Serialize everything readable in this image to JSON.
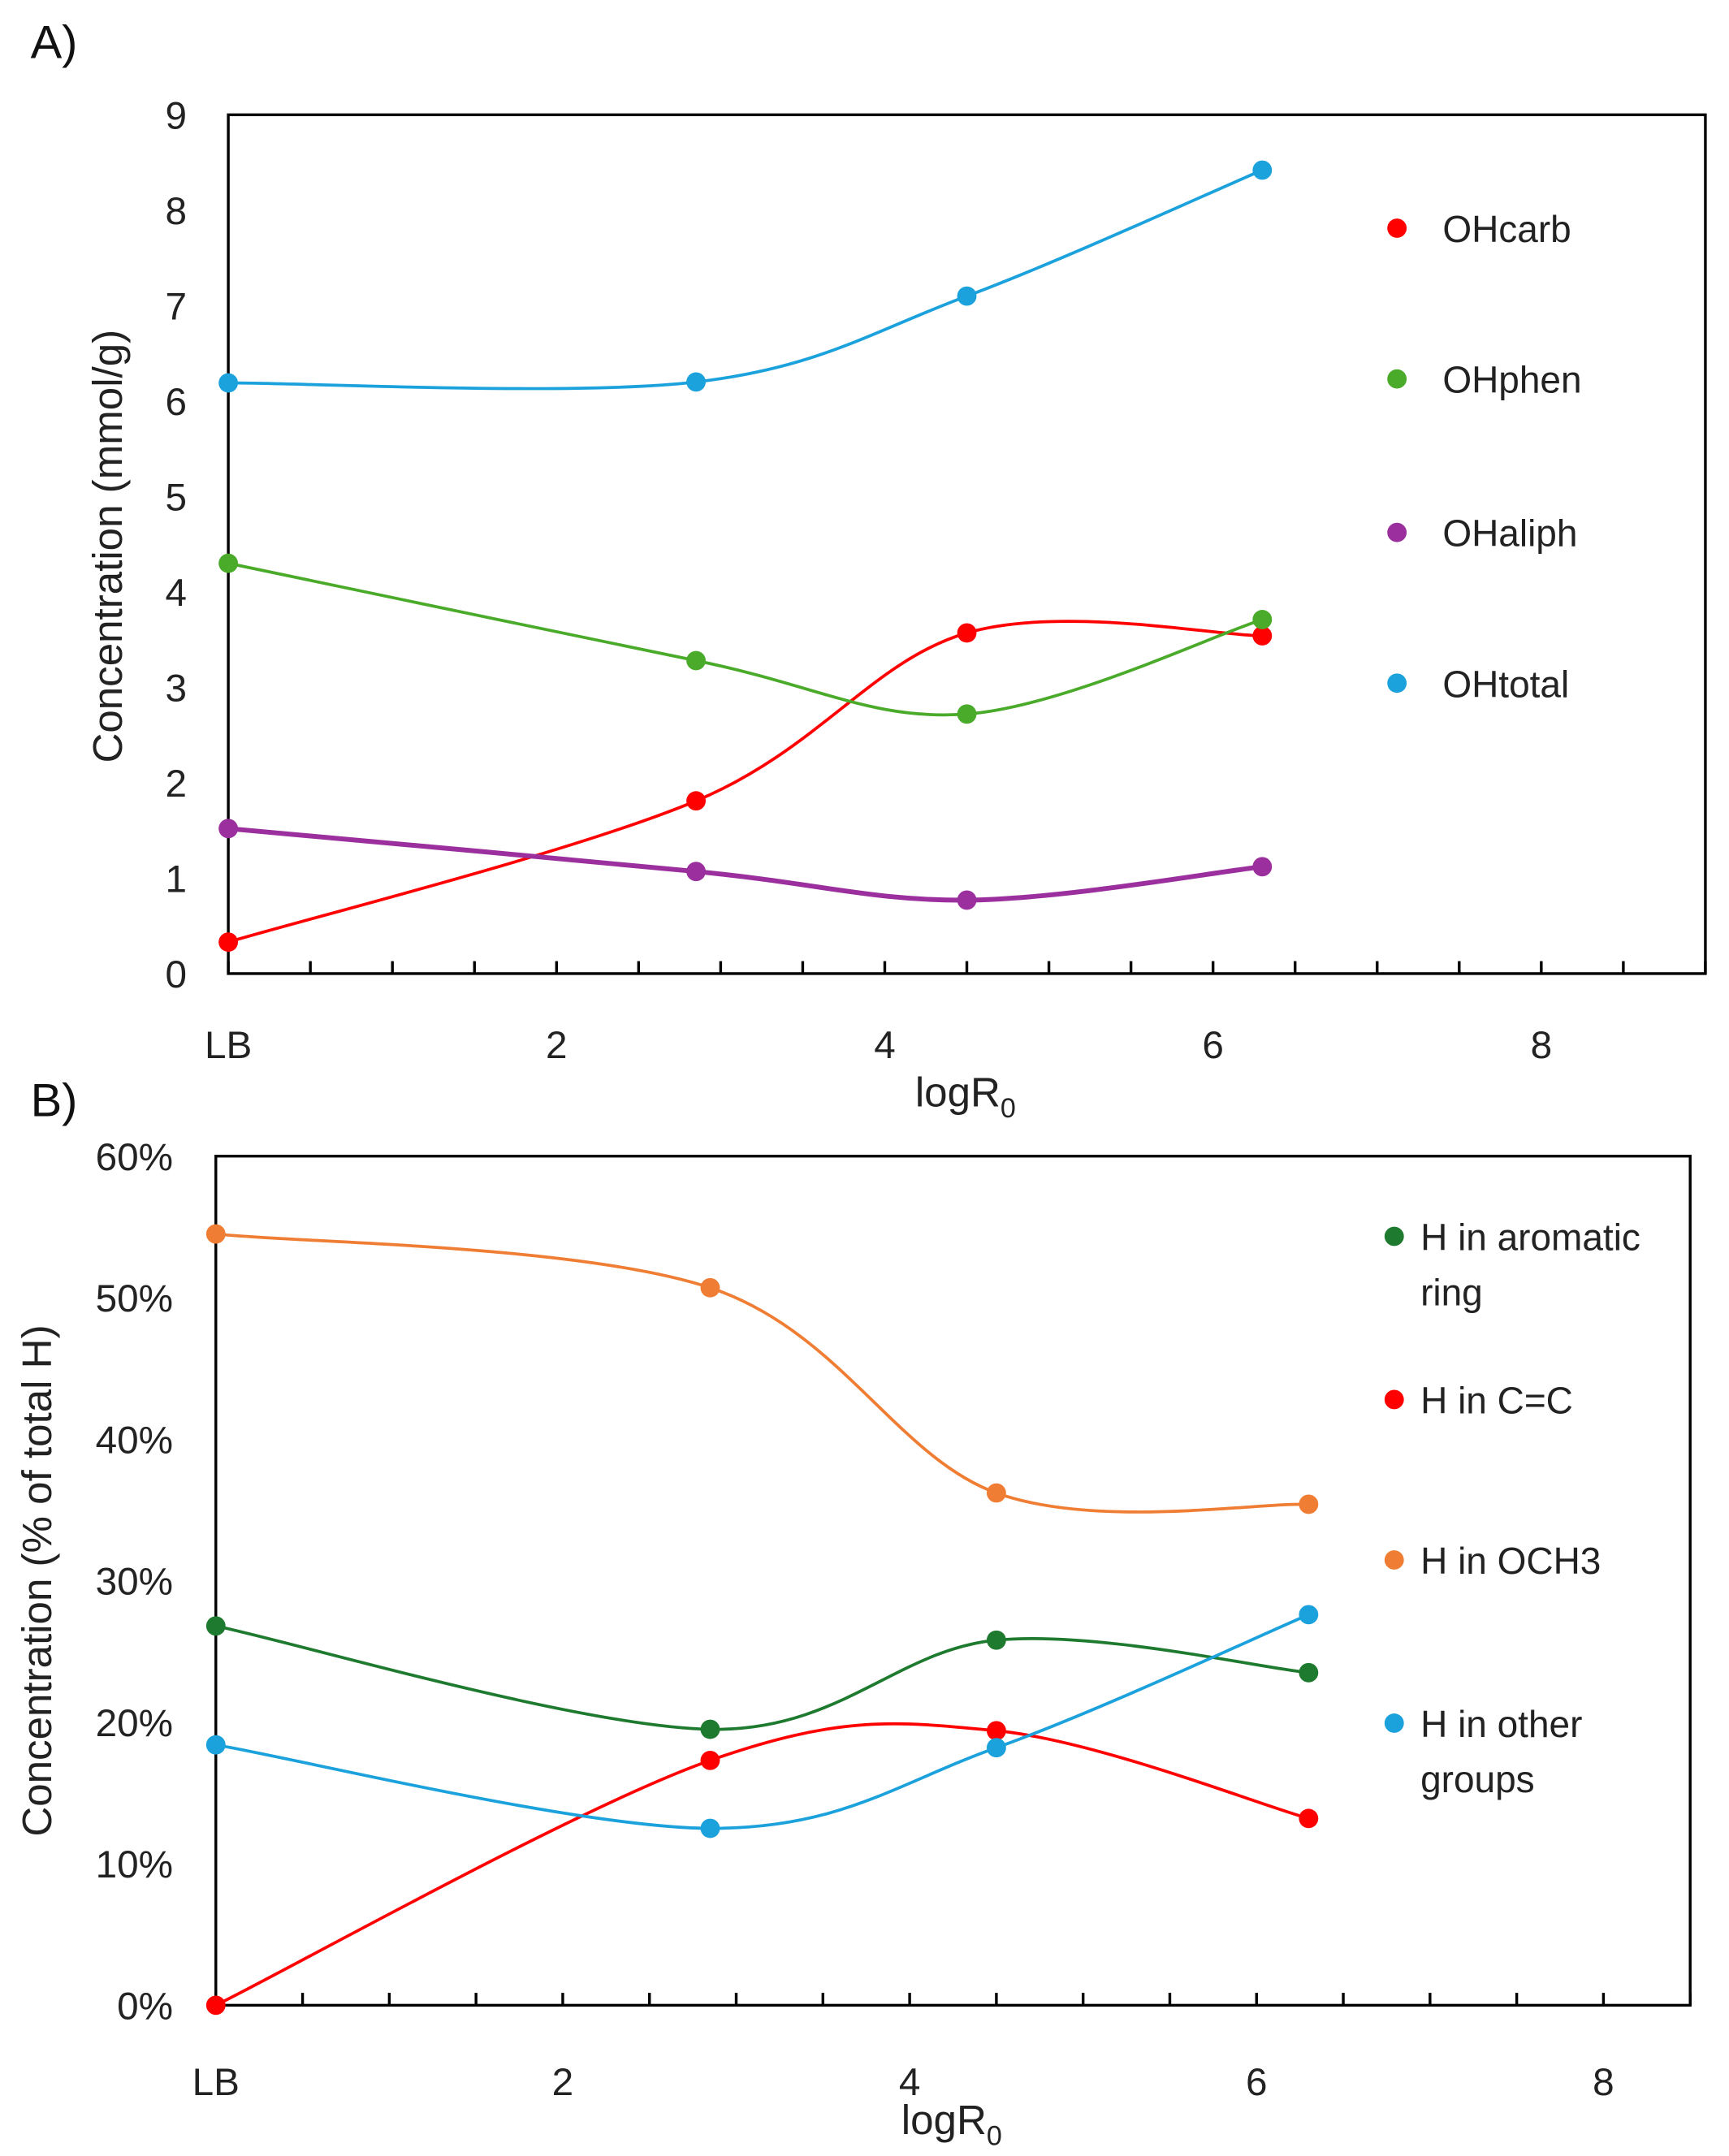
{
  "chart_data": [
    {
      "type": "line",
      "panel_label": "A)",
      "xlabel": "logR",
      "xlabel_sub": "0",
      "ylabel": "Concentration (mmol/g)",
      "xlim": [
        0,
        9
      ],
      "ylim": [
        0,
        9
      ],
      "x_ticks": [
        {
          "value": 0,
          "label": "LB"
        },
        {
          "value": 2,
          "label": "2"
        },
        {
          "value": 4,
          "label": "4"
        },
        {
          "value": 6,
          "label": "6"
        },
        {
          "value": 8,
          "label": "8"
        }
      ],
      "y_ticks": [
        "0",
        "1",
        "2",
        "3",
        "4",
        "5",
        "6",
        "7",
        "8",
        "9"
      ],
      "grid": false,
      "smoothed": true,
      "legend_position": "right",
      "x": [
        0,
        2.85,
        4.5,
        6.3
      ],
      "series": [
        {
          "name": "OHcarb",
          "color": "#ff0000",
          "values": [
            0.33,
            1.81,
            3.57,
            3.54
          ]
        },
        {
          "name": "OHphen",
          "color": "#4aaa2a",
          "values": [
            4.3,
            3.28,
            2.72,
            3.71
          ]
        },
        {
          "name": "OHaliph",
          "color": "#9b2f9e",
          "values": [
            1.52,
            1.07,
            0.77,
            1.12
          ]
        },
        {
          "name": "OHtotal",
          "color": "#1ba1dc",
          "values": [
            6.19,
            6.2,
            7.1,
            8.42
          ]
        }
      ]
    },
    {
      "type": "line",
      "panel_label": "B)",
      "xlabel": "logR",
      "xlabel_sub": "0",
      "ylabel": "Concentration (% of total H)",
      "xlim": [
        0,
        8.5
      ],
      "ylim": [
        0,
        60
      ],
      "x_ticks": [
        {
          "value": 0,
          "label": "LB"
        },
        {
          "value": 2,
          "label": "2"
        },
        {
          "value": 4,
          "label": "4"
        },
        {
          "value": 6,
          "label": "6"
        },
        {
          "value": 8,
          "label": "8"
        }
      ],
      "y_ticks": [
        "0%",
        "10%",
        "20%",
        "30%",
        "40%",
        "50%",
        "60%"
      ],
      "grid": false,
      "smoothed": true,
      "legend_position": "right",
      "x": [
        0,
        2.85,
        4.5,
        6.3
      ],
      "series": [
        {
          "name": "H in aromatic ring",
          "legend_lines": [
            "H in aromatic",
            "ring"
          ],
          "color": "#1e7a2e",
          "values": [
            26.8,
            19.5,
            25.8,
            23.5
          ]
        },
        {
          "name": "H in C=C",
          "legend_lines": [
            "H in C=C"
          ],
          "color": "#ff0000",
          "values": [
            0,
            17.3,
            19.4,
            13.2
          ]
        },
        {
          "name": "H in OCH3",
          "legend_lines": [
            "H in OCH3"
          ],
          "color": "#ef7d33",
          "values": [
            54.5,
            50.7,
            36.2,
            35.4
          ]
        },
        {
          "name": "H in other groups",
          "legend_lines": [
            "H in other",
            "groups"
          ],
          "color": "#1ba1dc",
          "values": [
            18.4,
            12.5,
            18.2,
            27.6
          ]
        }
      ]
    }
  ]
}
